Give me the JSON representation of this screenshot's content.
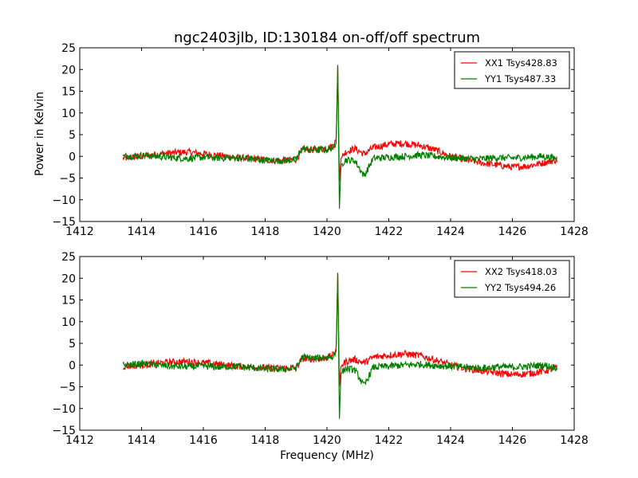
{
  "title": "ngc2403jlb, ID:130184 on-off/off spectrum",
  "xlabel": "Frequency (MHz)",
  "ylabel": "Power in Kelvin",
  "colors": {
    "xx": "#ff0000",
    "yy": "#007f00"
  },
  "chart_data": [
    {
      "type": "line",
      "title": "ngc2403jlb, ID:130184 on-off/off spectrum",
      "xlabel": "",
      "ylabel": "Power in Kelvin",
      "xlim": [
        1412,
        1428
      ],
      "ylim": [
        -15,
        25
      ],
      "xticks": [
        1412,
        1414,
        1416,
        1418,
        1420,
        1422,
        1424,
        1426,
        1428
      ],
      "yticks": [
        -15,
        -10,
        -5,
        0,
        5,
        10,
        15,
        20,
        25
      ],
      "grid": false,
      "legend_position": "top-right",
      "series": [
        {
          "name": "XX1 Tsys428.83",
          "color": "#ff0000",
          "x": [
            1413.4,
            1414.0,
            1414.5,
            1415.0,
            1415.5,
            1416.0,
            1416.5,
            1417.0,
            1417.5,
            1418.0,
            1418.5,
            1419.0,
            1419.2,
            1419.6,
            1420.0,
            1420.2,
            1420.3,
            1420.35,
            1420.4,
            1420.45,
            1420.6,
            1420.9,
            1421.2,
            1421.5,
            1422.0,
            1422.5,
            1423.0,
            1423.5,
            1424.0,
            1424.5,
            1425.0,
            1425.5,
            1426.0,
            1426.5,
            1427.0,
            1427.45
          ],
          "y": [
            -0.5,
            0.0,
            0.5,
            0.8,
            1.0,
            0.6,
            0.2,
            -0.2,
            -0.5,
            -0.8,
            -1.0,
            -0.7,
            1.5,
            1.5,
            1.8,
            2.5,
            4.0,
            21.5,
            -6.0,
            -0.5,
            1.0,
            1.8,
            0.5,
            2.0,
            2.8,
            3.0,
            2.5,
            1.5,
            0.0,
            -0.8,
            -1.5,
            -2.0,
            -2.5,
            -2.2,
            -1.5,
            -0.8
          ]
        },
        {
          "name": "YY1 Tsys487.33",
          "color": "#007f00",
          "x": [
            1413.4,
            1414.0,
            1414.5,
            1415.0,
            1415.5,
            1416.0,
            1416.5,
            1417.0,
            1417.5,
            1418.0,
            1418.5,
            1419.0,
            1419.2,
            1419.6,
            1420.0,
            1420.2,
            1420.3,
            1420.35,
            1420.4,
            1420.45,
            1420.6,
            1420.9,
            1421.2,
            1421.5,
            1422.0,
            1422.5,
            1423.0,
            1423.5,
            1424.0,
            1424.5,
            1425.0,
            1425.5,
            1426.0,
            1426.5,
            1427.0,
            1427.45
          ],
          "y": [
            0.0,
            0.2,
            0.0,
            -0.3,
            -0.5,
            -0.2,
            -0.4,
            -0.3,
            -0.6,
            -0.9,
            -1.0,
            -0.8,
            1.8,
            1.5,
            1.6,
            2.0,
            3.0,
            21.8,
            -12.5,
            -2.0,
            -0.8,
            -1.0,
            -4.5,
            -0.5,
            -0.2,
            0.0,
            0.3,
            0.0,
            -0.3,
            -0.5,
            -0.6,
            -0.3,
            -0.4,
            -0.2,
            0.0,
            -0.5
          ]
        }
      ]
    },
    {
      "type": "line",
      "title": "",
      "xlabel": "Frequency (MHz)",
      "ylabel": "",
      "xlim": [
        1412,
        1428
      ],
      "ylim": [
        -15,
        25
      ],
      "xticks": [
        1412,
        1414,
        1416,
        1418,
        1420,
        1422,
        1424,
        1426,
        1428
      ],
      "yticks": [
        -15,
        -10,
        -5,
        0,
        5,
        10,
        15,
        20,
        25
      ],
      "grid": false,
      "legend_position": "top-right",
      "series": [
        {
          "name": "XX2 Tsys418.03",
          "color": "#ff0000",
          "x": [
            1413.4,
            1414.0,
            1414.5,
            1415.0,
            1415.5,
            1416.0,
            1416.5,
            1417.0,
            1417.5,
            1418.0,
            1418.5,
            1419.0,
            1419.2,
            1419.6,
            1420.0,
            1420.2,
            1420.3,
            1420.35,
            1420.4,
            1420.45,
            1420.6,
            1420.9,
            1421.2,
            1421.5,
            1422.0,
            1422.5,
            1423.0,
            1423.5,
            1424.0,
            1424.5,
            1425.0,
            1425.5,
            1426.0,
            1426.5,
            1427.0,
            1427.45
          ],
          "y": [
            -0.3,
            0.0,
            0.4,
            0.7,
            0.8,
            0.5,
            0.2,
            -0.2,
            -0.4,
            -0.6,
            -0.8,
            -0.6,
            1.5,
            1.4,
            1.7,
            2.3,
            3.8,
            21.8,
            -5.0,
            -0.3,
            0.8,
            1.3,
            0.5,
            1.8,
            2.3,
            2.6,
            2.2,
            1.2,
            0.0,
            -0.8,
            -1.3,
            -1.8,
            -2.2,
            -2.0,
            -1.4,
            -0.7
          ]
        },
        {
          "name": "YY2 Tsys494.26",
          "color": "#007f00",
          "x": [
            1413.4,
            1414.0,
            1414.5,
            1415.0,
            1415.5,
            1416.0,
            1416.5,
            1417.0,
            1417.5,
            1418.0,
            1418.5,
            1419.0,
            1419.2,
            1419.6,
            1420.0,
            1420.2,
            1420.3,
            1420.35,
            1420.4,
            1420.45,
            1420.6,
            1420.9,
            1421.2,
            1421.5,
            1422.0,
            1422.5,
            1423.0,
            1423.5,
            1424.0,
            1424.5,
            1425.0,
            1425.5,
            1426.0,
            1426.5,
            1427.0,
            1427.45
          ],
          "y": [
            0.0,
            0.3,
            0.0,
            -0.3,
            -0.4,
            -0.2,
            -0.5,
            -0.3,
            -0.6,
            -0.9,
            -1.0,
            -0.7,
            1.8,
            1.6,
            1.7,
            2.0,
            3.2,
            22.0,
            -12.8,
            -2.0,
            -0.8,
            -1.1,
            -4.8,
            -0.5,
            -0.3,
            0.0,
            0.2,
            -0.1,
            -0.3,
            -0.5,
            -0.7,
            -0.4,
            -0.5,
            -0.3,
            0.0,
            -0.6
          ]
        }
      ]
    }
  ]
}
